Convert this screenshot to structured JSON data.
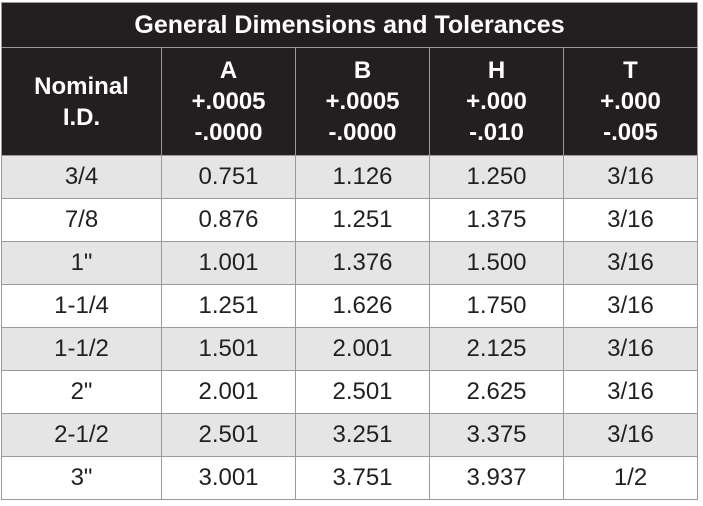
{
  "title": "General Dimensions and Tolerances",
  "headers": [
    {
      "lines": [
        "Nominal",
        "I.D."
      ]
    },
    {
      "lines": [
        "A",
        "+.0005",
        "-.0000"
      ]
    },
    {
      "lines": [
        "B",
        "+.0005",
        "-.0000"
      ]
    },
    {
      "lines": [
        "H",
        "+.000",
        "-.010"
      ]
    },
    {
      "lines": [
        "T",
        "+.000",
        "-.005"
      ]
    }
  ],
  "rows": [
    [
      "3/4",
      "0.751",
      "1.126",
      "1.250",
      "3/16"
    ],
    [
      "7/8",
      "0.876",
      "1.251",
      "1.375",
      "3/16"
    ],
    [
      "1\"",
      "1.001",
      "1.376",
      "1.500",
      "3/16"
    ],
    [
      "1-1/4",
      "1.251",
      "1.626",
      "1.750",
      "3/16"
    ],
    [
      "1-1/2",
      "1.501",
      "2.001",
      "2.125",
      "3/16"
    ],
    [
      "2\"",
      "2.001",
      "2.501",
      "2.625",
      "3/16"
    ],
    [
      "2-1/2",
      "2.501",
      "3.251",
      "3.375",
      "3/16"
    ],
    [
      "3\"",
      "3.001",
      "3.751",
      "3.937",
      "1/2"
    ]
  ],
  "colors": {
    "header_bg": "#231f20",
    "header_text": "#ffffff",
    "row_shaded": "#e5e5e5",
    "row_plain": "#ffffff"
  }
}
